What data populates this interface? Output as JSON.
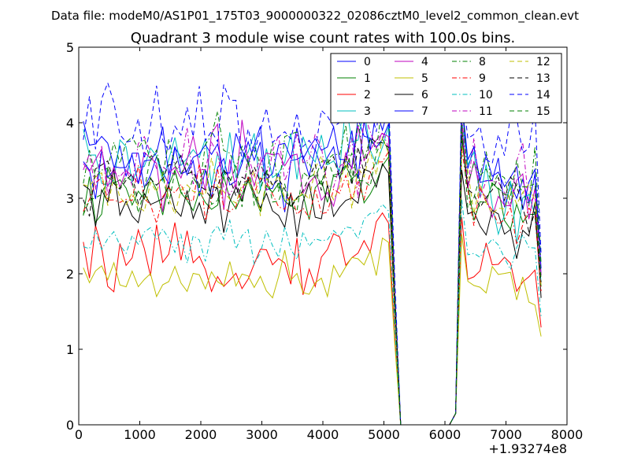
{
  "header": {
    "data_file": "Data file: modeM0/AS1P01_175T03_9000000322_02086cztM0_level2_common_clean.evt"
  },
  "chart_data": {
    "type": "line",
    "title": "Quadrant 3 module wise count rates with 100.0s bins.",
    "xlabel": "",
    "ylabel": "",
    "x_offset_label": "+1.93274e8",
    "xlim": [
      0,
      8000
    ],
    "ylim": [
      0,
      5
    ],
    "x_ticks": [
      0,
      1000,
      2000,
      3000,
      4000,
      5000,
      6000,
      7000,
      8000
    ],
    "y_ticks": [
      0,
      1,
      2,
      3,
      4,
      5
    ],
    "grid": false,
    "legend": {
      "placement": "top-right",
      "columns": 4
    },
    "x": [
      75,
      175,
      275,
      375,
      475,
      575,
      675,
      775,
      875,
      975,
      1075,
      1175,
      1275,
      1375,
      1475,
      1575,
      1675,
      1775,
      1875,
      1975,
      2075,
      2175,
      2275,
      2375,
      2475,
      2575,
      2675,
      2775,
      2875,
      2975,
      3075,
      3175,
      3275,
      3375,
      3475,
      3575,
      3675,
      3775,
      3875,
      3975,
      4075,
      4175,
      4275,
      4375,
      4475,
      4575,
      4675,
      4775,
      4875,
      4975,
      5075,
      5175,
      5275,
      5375,
      5475,
      5575,
      5675,
      5775,
      5875,
      5975,
      6075,
      6175,
      6275,
      6375,
      6475,
      6575,
      6675,
      6775,
      6875,
      6975,
      7075,
      7175,
      7275,
      7375,
      7475,
      7575
    ],
    "series": [
      {
        "name": "0",
        "color": "#0000ff",
        "dash": "solid",
        "base": 3.4,
        "tail": 3.3,
        "amp": 0.25
      },
      {
        "name": "1",
        "color": "#008000",
        "dash": "solid",
        "base": 3.0,
        "tail": 3.05,
        "amp": 0.2
      },
      {
        "name": "2",
        "color": "#ff0000",
        "dash": "solid",
        "base": 2.15,
        "tail": 2.15,
        "amp": 0.2
      },
      {
        "name": "3",
        "color": "#00bfbf",
        "dash": "solid",
        "base": 3.45,
        "tail": 3.15,
        "amp": 0.25
      },
      {
        "name": "4",
        "color": "#bf00bf",
        "dash": "solid",
        "base": 3.35,
        "tail": 3.3,
        "amp": 0.3
      },
      {
        "name": "5",
        "color": "#bfbf00",
        "dash": "solid",
        "base": 1.95,
        "tail": 1.95,
        "amp": 0.15
      },
      {
        "name": "6",
        "color": "#000000",
        "dash": "solid",
        "base": 2.9,
        "tail": 2.8,
        "amp": 0.2
      },
      {
        "name": "7",
        "color": "#0000ff",
        "dash": "solid",
        "base": 3.55,
        "tail": 3.45,
        "amp": 0.25
      },
      {
        "name": "8",
        "color": "#008000",
        "dash": "dashdot",
        "base": 3.6,
        "tail": 3.55,
        "amp": 0.25
      },
      {
        "name": "9",
        "color": "#ff0000",
        "dash": "dashdot",
        "base": 3.05,
        "tail": 2.95,
        "amp": 0.2
      },
      {
        "name": "10",
        "color": "#00bfbf",
        "dash": "dashdot",
        "base": 2.45,
        "tail": 2.4,
        "amp": 0.15
      },
      {
        "name": "11",
        "color": "#bf00bf",
        "dash": "dashdot",
        "base": 3.4,
        "tail": 3.3,
        "amp": 0.25
      },
      {
        "name": "12",
        "color": "#bfbf00",
        "dash": "dashed",
        "base": 3.1,
        "tail": 3.05,
        "amp": 0.2
      },
      {
        "name": "13",
        "color": "#000000",
        "dash": "dashed",
        "base": 3.2,
        "tail": 3.15,
        "amp": 0.2
      },
      {
        "name": "14",
        "color": "#0000ff",
        "dash": "dashed",
        "base": 3.95,
        "tail": 3.75,
        "amp": 0.3
      },
      {
        "name": "15",
        "color": "#008000",
        "dash": "dashed",
        "base": 3.2,
        "tail": 3.2,
        "amp": 0.2
      }
    ]
  }
}
